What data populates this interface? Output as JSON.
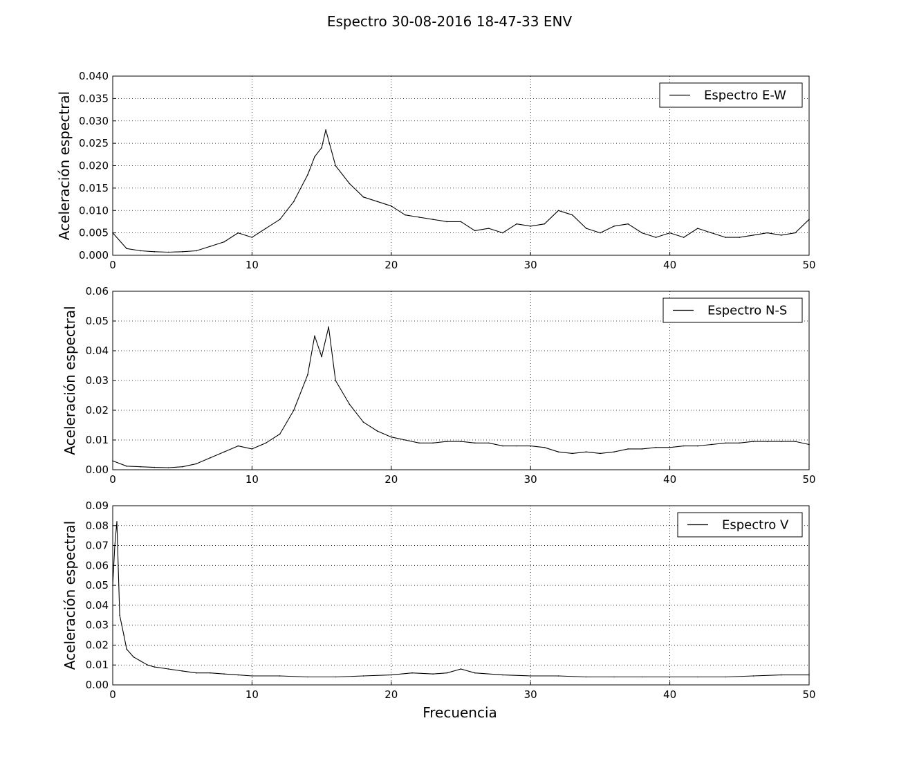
{
  "figure": {
    "title": "Espectro 30-08-2016 18-47-33 ENV",
    "xlabel": "Frecuencia"
  },
  "chart_data": [
    {
      "type": "line",
      "ylabel": "Aceleración espectral",
      "xlim": [
        0,
        50
      ],
      "ylim": [
        0,
        0.04
      ],
      "x_ticks": [
        "0",
        "10",
        "20",
        "30",
        "40",
        "50"
      ],
      "y_ticks": [
        "0.000",
        "0.005",
        "0.010",
        "0.015",
        "0.020",
        "0.025",
        "0.030",
        "0.035",
        "0.040"
      ],
      "grid": true,
      "legend_position": "top-right",
      "series": [
        {
          "name": "Espectro E-W",
          "color": "#000000",
          "x": [
            0,
            1,
            2,
            3,
            4,
            5,
            6,
            7,
            8,
            9,
            10,
            11,
            12,
            13,
            14,
            14.5,
            15,
            15.3,
            16,
            17,
            18,
            19,
            20,
            21,
            22,
            23,
            24,
            25,
            26,
            27,
            28,
            29,
            30,
            31,
            32,
            33,
            34,
            35,
            36,
            37,
            38,
            39,
            40,
            41,
            42,
            43,
            44,
            45,
            46,
            47,
            48,
            49,
            50
          ],
          "y": [
            0.005,
            0.0015,
            0.001,
            0.0008,
            0.0007,
            0.0008,
            0.001,
            0.002,
            0.003,
            0.005,
            0.004,
            0.006,
            0.008,
            0.012,
            0.018,
            0.022,
            0.024,
            0.028,
            0.02,
            0.016,
            0.013,
            0.012,
            0.011,
            0.009,
            0.0085,
            0.008,
            0.0075,
            0.0075,
            0.0055,
            0.006,
            0.005,
            0.007,
            0.0065,
            0.007,
            0.01,
            0.009,
            0.006,
            0.005,
            0.0065,
            0.007,
            0.005,
            0.004,
            0.005,
            0.004,
            0.006,
            0.005,
            0.004,
            0.004,
            0.0045,
            0.005,
            0.0045,
            0.005,
            0.008
          ]
        }
      ]
    },
    {
      "type": "line",
      "ylabel": "Aceleración espectral",
      "xlim": [
        0,
        50
      ],
      "ylim": [
        0,
        0.06
      ],
      "x_ticks": [
        "0",
        "10",
        "20",
        "30",
        "40",
        "50"
      ],
      "y_ticks": [
        "0.00",
        "0.01",
        "0.02",
        "0.03",
        "0.04",
        "0.05",
        "0.06"
      ],
      "grid": true,
      "legend_position": "top-right",
      "series": [
        {
          "name": "Espectro N-S",
          "color": "#000000",
          "x": [
            0,
            1,
            2,
            3,
            4,
            5,
            6,
            7,
            8,
            9,
            10,
            11,
            12,
            13,
            14,
            14.5,
            15,
            15.5,
            16,
            17,
            18,
            19,
            20,
            21,
            22,
            23,
            24,
            25,
            26,
            27,
            28,
            29,
            30,
            31,
            32,
            33,
            34,
            35,
            36,
            37,
            38,
            39,
            40,
            41,
            42,
            43,
            44,
            45,
            46,
            47,
            48,
            49,
            50
          ],
          "y": [
            0.003,
            0.0012,
            0.001,
            0.0008,
            0.0007,
            0.001,
            0.002,
            0.004,
            0.006,
            0.008,
            0.007,
            0.009,
            0.012,
            0.02,
            0.032,
            0.045,
            0.038,
            0.048,
            0.03,
            0.022,
            0.016,
            0.013,
            0.011,
            0.01,
            0.009,
            0.009,
            0.0095,
            0.0095,
            0.009,
            0.009,
            0.008,
            0.008,
            0.008,
            0.0075,
            0.006,
            0.0055,
            0.006,
            0.0055,
            0.006,
            0.007,
            0.007,
            0.0075,
            0.0075,
            0.008,
            0.008,
            0.0085,
            0.009,
            0.009,
            0.0095,
            0.0095,
            0.0095,
            0.0095,
            0.0085
          ]
        }
      ]
    },
    {
      "type": "line",
      "ylabel": "Aceleración espectral",
      "xlim": [
        0,
        50
      ],
      "ylim": [
        0,
        0.09
      ],
      "x_ticks": [
        "0",
        "10",
        "20",
        "30",
        "40",
        "50"
      ],
      "y_ticks": [
        "0.00",
        "0.01",
        "0.02",
        "0.03",
        "0.04",
        "0.05",
        "0.06",
        "0.07",
        "0.08",
        "0.09"
      ],
      "grid": true,
      "legend_position": "top-right",
      "series": [
        {
          "name": "Espectro V",
          "color": "#000000",
          "x": [
            0,
            0.15,
            0.3,
            0.5,
            0.8,
            1,
            1.5,
            2,
            2.5,
            3,
            4,
            5,
            6,
            7,
            8,
            9,
            10,
            12,
            14,
            16,
            18,
            20,
            21.5,
            23,
            24,
            25,
            26,
            28,
            30,
            32,
            34,
            36,
            38,
            40,
            42,
            44,
            46,
            48,
            50
          ],
          "y": [
            0.05,
            0.07,
            0.082,
            0.035,
            0.025,
            0.018,
            0.014,
            0.012,
            0.01,
            0.009,
            0.008,
            0.007,
            0.006,
            0.006,
            0.0055,
            0.005,
            0.0045,
            0.0045,
            0.004,
            0.004,
            0.0045,
            0.005,
            0.006,
            0.0055,
            0.006,
            0.008,
            0.006,
            0.005,
            0.0045,
            0.0045,
            0.004,
            0.004,
            0.004,
            0.004,
            0.004,
            0.004,
            0.0045,
            0.005,
            0.005
          ]
        }
      ]
    }
  ]
}
